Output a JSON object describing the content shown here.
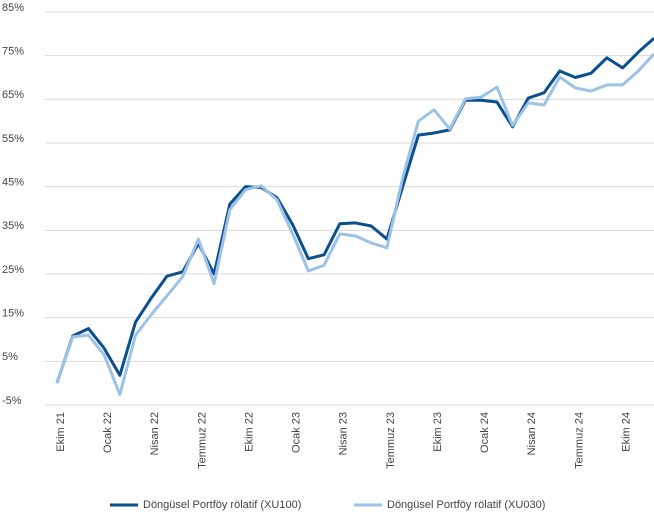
{
  "chart_data": {
    "type": "line",
    "categories": [
      "Ekim 21",
      null,
      null,
      "Ocak 22",
      null,
      null,
      "Nisan 22",
      null,
      null,
      "Temmuz 22",
      null,
      null,
      "Ekim 22",
      null,
      null,
      "Ocak 23",
      null,
      null,
      "Nisan 23",
      null,
      null,
      "Temmuz 23",
      null,
      null,
      "Ekim 23",
      null,
      null,
      "Ocak 24",
      null,
      null,
      "Nisan 24",
      null,
      null,
      "Temmuz 24",
      null,
      null,
      "Ekim 24",
      null,
      null
    ],
    "series": [
      {
        "name": "Döngüsel Portföy rölatif (XU100)",
        "color": "#0b4f8f",
        "values": [
          0,
          10.8,
          12.5,
          8,
          1.8,
          14,
          19.5,
          24.5,
          25.5,
          32,
          25,
          41,
          45,
          44.8,
          42.5,
          36.3,
          28.5,
          29.4,
          36.5,
          36.7,
          36,
          33,
          45,
          56.8,
          57.3,
          58,
          64.8,
          64.8,
          64.4,
          58.7,
          65.3,
          66.5,
          71.5,
          70,
          71,
          74.5,
          72.2,
          75.8,
          79
        ]
      },
      {
        "name": "Döngüsel Portföy rölatif (XU030)",
        "color": "#9cc3e6",
        "values": [
          0,
          10.6,
          11,
          6.5,
          -2.6,
          11,
          15.7,
          20,
          24.4,
          33,
          22.8,
          39.7,
          44.3,
          45.2,
          42,
          34.2,
          25.7,
          27,
          34.2,
          33.7,
          32.1,
          31,
          47,
          60,
          62.6,
          58.2,
          65.1,
          65.5,
          67.8,
          59,
          64.2,
          63.7,
          70.1,
          67.6,
          66.9,
          68.3,
          68.3,
          71.5,
          75.4
        ]
      }
    ],
    "ylim": [
      -5,
      85
    ],
    "yticks": [
      {
        "value": 85,
        "label": "85%"
      },
      {
        "value": 75,
        "label": "75%"
      },
      {
        "value": 65,
        "label": "65%"
      },
      {
        "value": 55,
        "label": "55%"
      },
      {
        "value": 45,
        "label": "45%"
      },
      {
        "value": 35,
        "label": "35%"
      },
      {
        "value": 25,
        "label": "25%"
      },
      {
        "value": 15,
        "label": "15%"
      },
      {
        "value": 5,
        "label": "5%"
      },
      {
        "value": -5,
        "label": "-5%"
      }
    ],
    "grid": true,
    "legend": "bottom"
  }
}
